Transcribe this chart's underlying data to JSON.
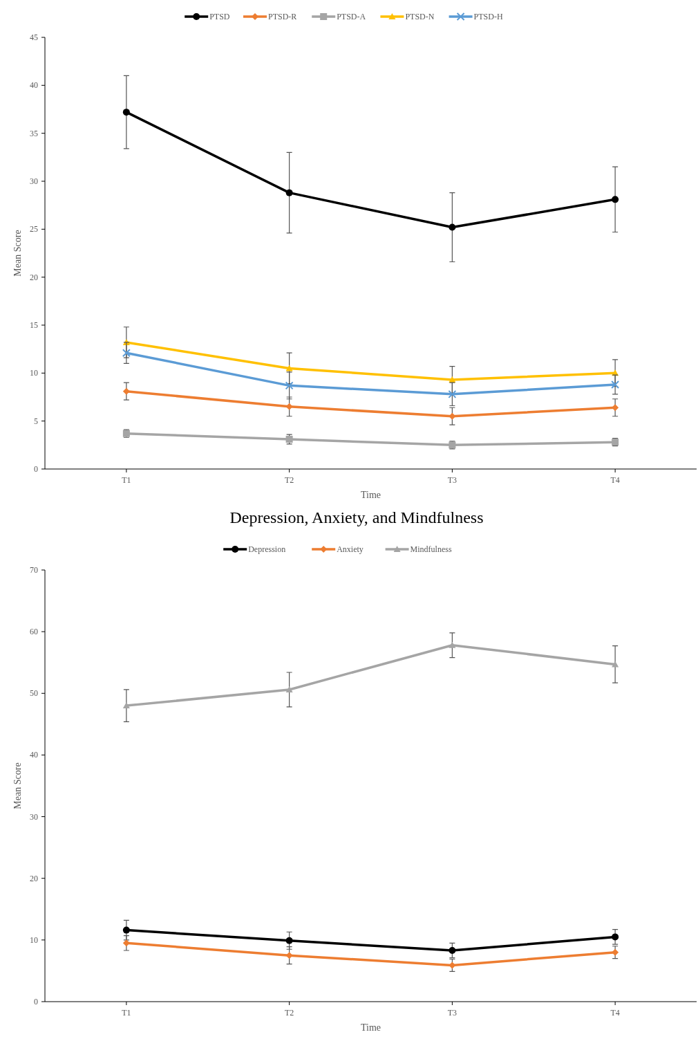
{
  "chart_data": [
    {
      "type": "line",
      "xlabel": "Time",
      "ylabel": "Mean Score",
      "categories": [
        "T1",
        "T2",
        "T3",
        "T4"
      ],
      "ylim": [
        0,
        45
      ],
      "yticks": [
        0,
        5,
        10,
        15,
        20,
        25,
        30,
        35,
        40,
        45
      ],
      "grid": false,
      "legend": "top",
      "series": [
        {
          "name": "PTSD",
          "color": "#000000",
          "marker": "circle",
          "values": [
            37.2,
            28.8,
            25.2,
            28.1
          ],
          "errors": [
            3.8,
            4.2,
            3.6,
            3.4
          ]
        },
        {
          "name": "PTSD-R",
          "color": "#ed7d31",
          "marker": "diamond",
          "values": [
            8.1,
            6.5,
            5.5,
            6.4
          ],
          "errors": [
            0.9,
            1.0,
            0.9,
            0.9
          ]
        },
        {
          "name": "PTSD-A",
          "color": "#a5a5a5",
          "marker": "square",
          "values": [
            3.7,
            3.1,
            2.5,
            2.8
          ],
          "errors": [
            0.4,
            0.5,
            0.4,
            0.4
          ]
        },
        {
          "name": "PTSD-N",
          "color": "#ffc000",
          "marker": "triangle",
          "values": [
            13.2,
            10.5,
            9.3,
            10.0
          ],
          "errors": [
            1.6,
            1.6,
            1.4,
            1.4
          ]
        },
        {
          "name": "PTSD-H",
          "color": "#5b9bd5",
          "marker": "cross",
          "values": [
            12.1,
            8.7,
            7.8,
            8.8
          ],
          "errors": [
            1.1,
            1.4,
            1.2,
            1.0
          ]
        }
      ]
    },
    {
      "type": "line",
      "title": "Depression, Anxiety, and Mindfulness",
      "xlabel": "Time",
      "ylabel": "Mean Score",
      "categories": [
        "T1",
        "T2",
        "T3",
        "T4"
      ],
      "ylim": [
        0,
        70
      ],
      "yticks": [
        0,
        10,
        20,
        30,
        40,
        50,
        60,
        70
      ],
      "grid": false,
      "legend": "top",
      "series": [
        {
          "name": "Depression",
          "color": "#000000",
          "marker": "circle",
          "values": [
            11.6,
            9.9,
            8.3,
            10.5
          ],
          "errors": [
            1.6,
            1.4,
            1.2,
            1.2
          ]
        },
        {
          "name": "Anxiety",
          "color": "#ed7d31",
          "marker": "diamond",
          "values": [
            9.5,
            7.5,
            5.9,
            8.0
          ],
          "errors": [
            1.2,
            1.4,
            1.0,
            1.0
          ]
        },
        {
          "name": "Mindfulness",
          "color": "#a5a5a5",
          "marker": "triangle",
          "values": [
            48.0,
            50.6,
            57.8,
            54.7
          ],
          "errors": [
            2.6,
            2.8,
            2.0,
            3.0
          ]
        }
      ]
    }
  ]
}
